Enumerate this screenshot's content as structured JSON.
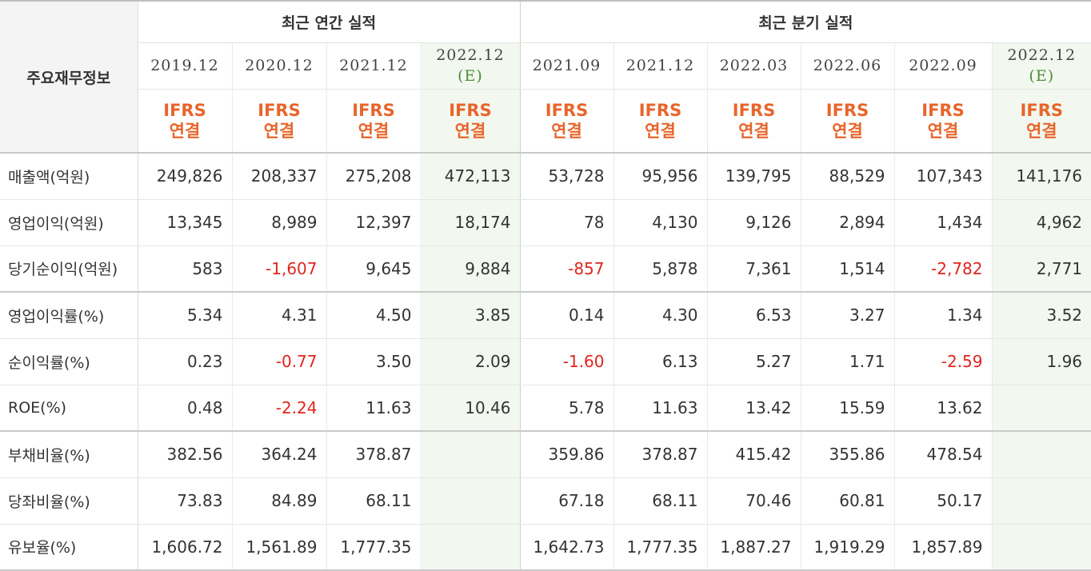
{
  "header": {
    "label_title": "주요재무정보",
    "annual_group": "최근 연간 실적",
    "quarter_group": "최근 분기 실적",
    "periods": [
      {
        "date": "2019.12",
        "est": ""
      },
      {
        "date": "2020.12",
        "est": ""
      },
      {
        "date": "2021.12",
        "est": ""
      },
      {
        "date": "2022.12",
        "est": "(E)"
      },
      {
        "date": "2021.09",
        "est": ""
      },
      {
        "date": "2021.12",
        "est": ""
      },
      {
        "date": "2022.03",
        "est": ""
      },
      {
        "date": "2022.06",
        "est": ""
      },
      {
        "date": "2022.09",
        "est": ""
      },
      {
        "date": "2022.12",
        "est": "(E)"
      }
    ],
    "ifrs_line1": "IFRS",
    "ifrs_line2": "연결"
  },
  "rows": [
    {
      "label": "매출액(억원)",
      "values": [
        "249,826",
        "208,337",
        "275,208",
        "472,113",
        "53,728",
        "95,956",
        "139,795",
        "88,529",
        "107,343",
        "141,176"
      ]
    },
    {
      "label": "영업이익(억원)",
      "values": [
        "13,345",
        "8,989",
        "12,397",
        "18,174",
        "78",
        "4,130",
        "9,126",
        "2,894",
        "1,434",
        "4,962"
      ]
    },
    {
      "label": "당기순이익(억원)",
      "values": [
        "583",
        "-1,607",
        "9,645",
        "9,884",
        "-857",
        "5,878",
        "7,361",
        "1,514",
        "-2,782",
        "2,771"
      ]
    },
    {
      "label": "영업이익률(%)",
      "values": [
        "5.34",
        "4.31",
        "4.50",
        "3.85",
        "0.14",
        "4.30",
        "6.53",
        "3.27",
        "1.34",
        "3.52"
      ]
    },
    {
      "label": "순이익률(%)",
      "values": [
        "0.23",
        "-0.77",
        "3.50",
        "2.09",
        "-1.60",
        "6.13",
        "5.27",
        "1.71",
        "-2.59",
        "1.96"
      ]
    },
    {
      "label": "ROE(%)",
      "values": [
        "0.48",
        "-2.24",
        "11.63",
        "10.46",
        "5.78",
        "11.63",
        "13.42",
        "15.59",
        "13.62",
        ""
      ]
    },
    {
      "label": "부채비율(%)",
      "values": [
        "382.56",
        "364.24",
        "378.87",
        "",
        "359.86",
        "378.87",
        "415.42",
        "355.86",
        "478.54",
        ""
      ]
    },
    {
      "label": "당좌비율(%)",
      "values": [
        "73.83",
        "84.89",
        "68.11",
        "",
        "67.18",
        "68.11",
        "70.46",
        "60.81",
        "50.17",
        ""
      ]
    },
    {
      "label": "유보율(%)",
      "values": [
        "1,606.72",
        "1,561.89",
        "1,777.35",
        "",
        "1,642.73",
        "1,777.35",
        "1,887.27",
        "1,919.29",
        "1,857.89",
        ""
      ]
    }
  ],
  "colors": {
    "negative": "#e0251e",
    "ifrs": "#e8652b",
    "estimate_bg": "#f2f8ef",
    "estimate_text": "#4d8a3a"
  }
}
